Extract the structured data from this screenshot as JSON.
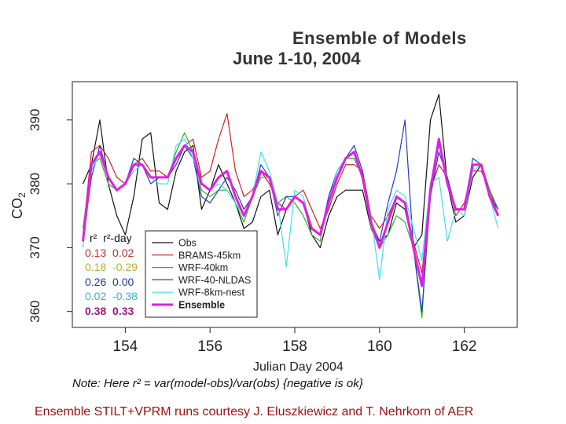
{
  "chart_data": {
    "type": "line",
    "title": "Ensemble of Models",
    "subtitle": "June 1-10, 2004",
    "xlabel": "Julian Day 2004",
    "ylabel": "CO2",
    "xlim": [
      152.75,
      163.25
    ],
    "ylim": [
      357.5,
      396
    ],
    "xticks": [
      154,
      156,
      158,
      160,
      162
    ],
    "yticks": [
      360,
      370,
      380,
      390
    ],
    "legend_title": "",
    "legend_position": "bottom-left",
    "series": [
      {
        "name": "Obs",
        "color": "#111111",
        "width": 1.2,
        "x": [
          153.0,
          153.2,
          153.4,
          153.6,
          153.8,
          154.0,
          154.2,
          154.4,
          154.6,
          154.8,
          155.0,
          155.2,
          155.4,
          155.6,
          155.8,
          156.0,
          156.2,
          156.4,
          156.6,
          156.8,
          157.0,
          157.2,
          157.4,
          157.6,
          157.8,
          158.0,
          158.2,
          158.4,
          158.6,
          158.8,
          159.0,
          159.2,
          159.4,
          159.6,
          159.8,
          160.0,
          160.2,
          160.4,
          160.6,
          160.8,
          161.0,
          161.2,
          161.4,
          161.6,
          161.8,
          162.0,
          162.2,
          162.4,
          162.6,
          162.8
        ],
        "values": [
          380,
          383,
          390,
          380,
          375,
          372,
          378,
          387,
          388,
          377,
          376,
          382,
          385,
          386,
          376,
          379,
          383,
          380,
          377,
          373,
          374,
          378,
          379,
          372,
          376,
          378,
          377,
          372,
          370,
          375,
          378,
          379,
          379,
          379,
          373,
          371,
          372,
          377,
          376,
          370,
          372,
          390,
          394,
          380,
          374,
          375,
          381,
          383,
          379,
          376
        ]
      },
      {
        "name": "BRAMS-45km",
        "color": "#d42020",
        "width": 1.2,
        "x": [
          153.0,
          153.2,
          153.4,
          153.6,
          153.8,
          154.0,
          154.2,
          154.4,
          154.6,
          154.8,
          155.0,
          155.2,
          155.4,
          155.6,
          155.8,
          156.0,
          156.2,
          156.4,
          156.6,
          156.8,
          157.0,
          157.2,
          157.4,
          157.6,
          157.8,
          158.0,
          158.2,
          158.4,
          158.6,
          158.8,
          159.0,
          159.2,
          159.4,
          159.6,
          159.8,
          160.0,
          160.2,
          160.4,
          160.6,
          160.8,
          161.0,
          161.2,
          161.4,
          161.6,
          161.8,
          162.0,
          162.2,
          162.4,
          162.6,
          162.8
        ],
        "values": [
          372,
          385,
          386,
          384,
          381,
          380,
          383,
          384,
          382,
          382,
          381,
          384,
          386,
          387,
          381,
          382,
          387,
          391,
          382,
          378,
          379,
          382,
          380,
          377,
          376,
          378,
          379,
          376,
          373,
          376,
          380,
          383,
          383,
          382,
          375,
          373,
          375,
          378,
          377,
          371,
          366,
          379,
          383,
          381,
          375,
          377,
          382,
          382,
          379,
          375
        ]
      },
      {
        "name": "WRF-40km",
        "color": "#2fae2f",
        "width": 1.2,
        "x": [
          153.0,
          153.2,
          153.4,
          153.6,
          153.8,
          154.0,
          154.2,
          154.4,
          154.6,
          154.8,
          155.0,
          155.2,
          155.4,
          155.6,
          155.8,
          156.0,
          156.2,
          156.4,
          156.6,
          156.8,
          157.0,
          157.2,
          157.4,
          157.6,
          157.8,
          158.0,
          158.2,
          158.4,
          158.6,
          158.8,
          159.0,
          159.2,
          159.4,
          159.6,
          159.8,
          160.0,
          160.2,
          160.4,
          160.6,
          160.8,
          161.0,
          161.2,
          161.4,
          161.6,
          161.8,
          162.0,
          162.2,
          162.4,
          162.6,
          162.8
        ],
        "values": [
          373,
          383,
          384,
          380,
          379,
          380,
          383,
          383,
          381,
          381,
          381,
          385,
          388,
          385,
          379,
          378,
          379,
          379,
          377,
          374,
          378,
          381,
          381,
          377,
          378,
          377,
          375,
          372,
          371,
          378,
          382,
          384,
          384,
          381,
          373,
          370,
          372,
          375,
          374,
          370,
          359,
          380,
          386,
          381,
          376,
          376,
          383,
          383,
          379,
          376
        ]
      },
      {
        "name": "WRF-40-NLDAS",
        "color": "#2838c8",
        "width": 1.2,
        "x": [
          153.0,
          153.2,
          153.4,
          153.6,
          153.8,
          154.0,
          154.2,
          154.4,
          154.6,
          154.8,
          155.0,
          155.2,
          155.4,
          155.6,
          155.8,
          156.0,
          156.2,
          156.4,
          156.6,
          156.8,
          157.0,
          157.2,
          157.4,
          157.6,
          157.8,
          158.0,
          158.2,
          158.4,
          158.6,
          158.8,
          159.0,
          159.2,
          159.4,
          159.6,
          159.8,
          160.0,
          160.2,
          160.4,
          160.6,
          160.8,
          161.0,
          161.2,
          161.4,
          161.6,
          161.8,
          162.0,
          162.2,
          162.4,
          162.6,
          162.8
        ],
        "values": [
          371,
          381,
          386,
          381,
          379,
          380,
          384,
          383,
          380,
          381,
          381,
          383,
          386,
          384,
          378,
          377,
          379,
          381,
          379,
          376,
          378,
          383,
          381,
          375,
          378,
          378,
          377,
          373,
          372,
          378,
          382,
          384,
          386,
          382,
          374,
          371,
          377,
          382,
          390,
          370,
          360,
          378,
          385,
          381,
          376,
          376,
          384,
          383,
          378,
          376
        ]
      },
      {
        "name": "WRF-8km-nest",
        "color": "#3fe0ef",
        "width": 1.2,
        "x": [
          153.0,
          153.2,
          153.4,
          153.6,
          153.8,
          154.0,
          154.2,
          154.4,
          154.6,
          154.8,
          155.0,
          155.2,
          155.4,
          155.6,
          155.8,
          156.0,
          156.2,
          156.4,
          156.6,
          156.8,
          157.0,
          157.2,
          157.4,
          157.6,
          157.8,
          158.0,
          158.2,
          158.4,
          158.6,
          158.8,
          159.0,
          159.2,
          159.4,
          159.6,
          159.8,
          160.0,
          160.2,
          160.4,
          160.6,
          160.8,
          161.0,
          161.2,
          161.4,
          161.6,
          161.8,
          162.0,
          162.2,
          162.4,
          162.6,
          162.8
        ],
        "values": [
          370,
          382,
          385,
          381,
          379,
          380,
          382,
          383,
          381,
          380,
          380,
          386,
          387,
          384,
          380,
          379,
          380,
          379,
          377,
          375,
          378,
          385,
          382,
          377,
          367,
          379,
          378,
          373,
          372,
          377,
          382,
          384,
          385,
          381,
          375,
          365,
          376,
          379,
          378,
          373,
          368,
          380,
          381,
          371,
          376,
          375,
          382,
          383,
          378,
          373
        ]
      },
      {
        "name": "Ensemble",
        "color": "#e020e0",
        "width": 3,
        "x": [
          153.0,
          153.2,
          153.4,
          153.6,
          153.8,
          154.0,
          154.2,
          154.4,
          154.6,
          154.8,
          155.0,
          155.2,
          155.4,
          155.6,
          155.8,
          156.0,
          156.2,
          156.4,
          156.6,
          156.8,
          157.0,
          157.2,
          157.4,
          157.6,
          157.8,
          158.0,
          158.2,
          158.4,
          158.6,
          158.8,
          159.0,
          159.2,
          159.4,
          159.6,
          159.8,
          160.0,
          160.2,
          160.4,
          160.6,
          160.8,
          161.0,
          161.2,
          161.4,
          161.6,
          161.8,
          162.0,
          162.2,
          162.4,
          162.6,
          162.8
        ],
        "values": [
          371,
          383,
          385,
          381,
          379,
          380,
          383,
          383,
          381,
          381,
          381,
          384,
          386,
          385,
          380,
          379,
          381,
          382,
          378,
          375,
          378,
          382,
          381,
          376,
          376,
          378,
          377,
          373,
          372,
          377,
          381,
          384,
          385,
          381,
          374,
          370,
          374,
          378,
          377,
          370,
          364,
          379,
          387,
          380,
          376,
          376,
          383,
          383,
          378,
          375
        ]
      }
    ],
    "r2_stats": {
      "header": [
        "r²",
        "r²-day"
      ],
      "rows": [
        {
          "r2": "0.13",
          "r2day": "0.02",
          "color": "#c03030"
        },
        {
          "r2": "0.18",
          "r2day": "-0.29",
          "color": "#b8b030"
        },
        {
          "r2": "0.26",
          "r2day": "0.00",
          "color": "#1a3aa8"
        },
        {
          "r2": "0.02",
          "r2day": "-0.38",
          "color": "#38b0c8"
        },
        {
          "r2": "0.38",
          "r2day": "0.33",
          "color": "#a01880"
        }
      ]
    },
    "note": "Note: Here r² = var(model-obs)/var(obs) {negative is ok}",
    "credit": "Ensemble STILT+VPRM runs courtesy J. Eluszkiewicz and T. Nehrkorn of AER"
  }
}
